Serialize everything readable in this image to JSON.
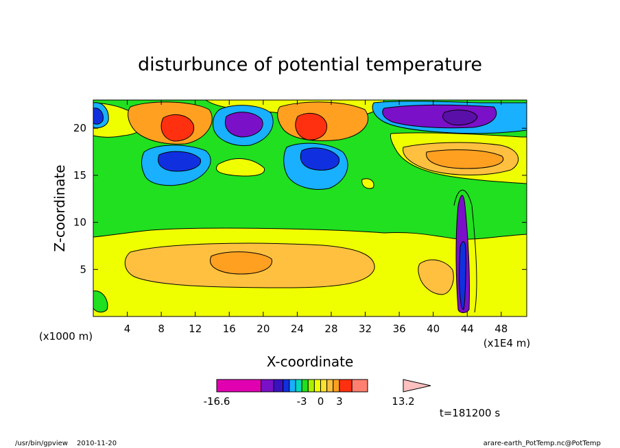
{
  "chart_data": {
    "type": "heatmap",
    "title": "disturbunce of potential temperature",
    "xlabel": "X-coordinate",
    "ylabel": "Z-coordinate",
    "x_unit_left": "(x1000 m)",
    "x_unit_right": "(x1E4 m)",
    "xlim": [
      0,
      51
    ],
    "ylim": [
      0,
      23
    ],
    "x_ticks": [
      "4",
      "8",
      "12",
      "16",
      "20",
      "24",
      "28",
      "32",
      "36",
      "40",
      "44",
      "48"
    ],
    "y_ticks": [
      "5",
      "10",
      "15",
      "20"
    ],
    "x_tick_values": [
      4,
      8,
      12,
      16,
      20,
      24,
      28,
      32,
      36,
      40,
      44,
      48
    ],
    "y_tick_values": [
      5,
      10,
      15,
      20
    ],
    "colorbar": {
      "min_label": "-16.6",
      "max_label": "13.2",
      "labels": [
        "-3",
        "0",
        "3"
      ],
      "label_values": [
        -3,
        0,
        3
      ],
      "levels": [
        -16.6,
        -9.5,
        -7.5,
        -6,
        -5,
        -4,
        -3,
        -2,
        -1,
        0,
        1,
        2,
        3,
        5,
        7.5,
        13.2
      ],
      "colors": [
        "#e000b0",
        "#7a10c8",
        "#3a12c0",
        "#1030e0",
        "#18b0ff",
        "#00d8c0",
        "#20e020",
        "#a8f000",
        "#f0ff00",
        "#ffe030",
        "#ffc040",
        "#ffa020",
        "#ff3010",
        "#ff8070",
        "#ffc0c0"
      ]
    },
    "annotations": [
      "t=181200 s"
    ]
  },
  "footer": {
    "left_path": "/usr/bin/gpview",
    "left_date": "2010-11-20",
    "right": "arare-earth_PotTemp.nc@PotTemp"
  },
  "colors": {
    "bg_field": "#f0ff00",
    "green": "#20e020",
    "cyan": "#18b0ff",
    "blue": "#1030e0",
    "purple": "#7a10c8",
    "orange": "#ffa020",
    "lightorange": "#ffc040",
    "red": "#ff3010"
  }
}
